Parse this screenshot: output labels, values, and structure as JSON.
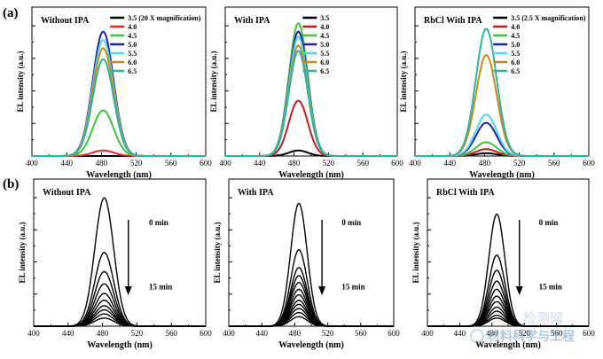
{
  "figure": {
    "panel_labels": [
      "(a)",
      "(b)"
    ],
    "watermark": {
      "line1": "检测网",
      "line2": "材料科学与工程"
    }
  },
  "chart_data": [
    {
      "type": "line",
      "row": "a",
      "title": "Without IPA",
      "xlabel": "Wavelength (nm)",
      "ylabel": "EL intensity (a.u.)",
      "xlim": [
        400,
        600
      ],
      "xticks": [
        400,
        440,
        480,
        520,
        560,
        600
      ],
      "ylim": [
        0,
        1.0
      ],
      "peak": 482,
      "sigma": 12,
      "legend_position": "top-right",
      "series": [
        {
          "name": "3.5 (20 X magnification)",
          "color": "#000000",
          "amplitude": 0.0
        },
        {
          "name": "4.0",
          "color": "#e8262a",
          "amplitude": 0.04
        },
        {
          "name": "4.5",
          "color": "#3cc63c",
          "amplitude": 0.33
        },
        {
          "name": "5.0",
          "color": "#1f1fa8",
          "amplitude": 0.9
        },
        {
          "name": "5.5",
          "color": "#52d6f2",
          "amplitude": 0.84
        },
        {
          "name": "6.0",
          "color": "#c98a1a",
          "amplitude": 0.78
        },
        {
          "name": "6.5",
          "color": "#2fb3a0",
          "amplitude": 0.7
        }
      ]
    },
    {
      "type": "line",
      "row": "a",
      "title": "With IPA",
      "xlabel": "Wavelength (nm)",
      "ylabel": "EL intensity (a.u.)",
      "xlim": [
        400,
        600
      ],
      "xticks": [
        400,
        440,
        480,
        520,
        560,
        600
      ],
      "ylim": [
        0,
        1.0
      ],
      "peak": 485,
      "sigma": 11,
      "legend_position": "top-right",
      "series": [
        {
          "name": "3.5",
          "color": "#000000",
          "amplitude": 0.04
        },
        {
          "name": "4.0",
          "color": "#c41c1c",
          "amplitude": 0.4
        },
        {
          "name": "4.5",
          "color": "#3cc63c",
          "amplitude": 0.96
        },
        {
          "name": "5.0",
          "color": "#1f1fa8",
          "amplitude": 0.9
        },
        {
          "name": "5.5",
          "color": "#52d6f2",
          "amplitude": 0.86
        },
        {
          "name": "6.0",
          "color": "#c98a1a",
          "amplitude": 0.8
        },
        {
          "name": "6.5",
          "color": "#2fb3a0",
          "amplitude": 0.76
        }
      ]
    },
    {
      "type": "line",
      "row": "a",
      "title": "RbCl With IPA",
      "xlabel": "Wavelength (nm)",
      "ylabel": "EL intensity (a.u.)",
      "xlim": [
        400,
        600
      ],
      "xticks": [
        400,
        440,
        480,
        520,
        560,
        600
      ],
      "ylim": [
        0,
        1.0
      ],
      "peak": 482,
      "sigma": 12,
      "legend_position": "top-right",
      "series": [
        {
          "name": "3.5 (2.5 X magnification)",
          "color": "#000000",
          "amplitude": 0.02
        },
        {
          "name": "4.0",
          "color": "#c41c1c",
          "amplitude": 0.05
        },
        {
          "name": "4.5",
          "color": "#3cc63c",
          "amplitude": 0.1
        },
        {
          "name": "5.0",
          "color": "#1f1fa8",
          "amplitude": 0.24
        },
        {
          "name": "5.5",
          "color": "#52d6f2",
          "amplitude": 0.3
        },
        {
          "name": "6.0",
          "color": "#c98a1a",
          "amplitude": 0.73
        },
        {
          "name": "6.5",
          "color": "#2fb3a0",
          "amplitude": 0.92
        }
      ]
    },
    {
      "type": "line",
      "row": "b",
      "title": "Without IPA",
      "xlabel": "Wavelength (nm)",
      "ylabel": "EL intensity (a.u.)",
      "xlim": [
        400,
        600
      ],
      "xticks": [
        400,
        440,
        480,
        520,
        560,
        600
      ],
      "ylim": [
        0,
        1.0
      ],
      "peak": 482,
      "sigma": 11,
      "color": "#000000",
      "amplitudes": [
        0.94,
        0.54,
        0.4,
        0.31,
        0.24,
        0.19,
        0.15,
        0.12,
        0.09,
        0.06
      ],
      "annotations": {
        "start": "0 min",
        "end": "15 min"
      }
    },
    {
      "type": "line",
      "row": "b",
      "title": "With IPA",
      "xlabel": "Wavelength (nm)",
      "ylabel": "EL intensity (a.u.)",
      "xlim": [
        400,
        600
      ],
      "xticks": [
        400,
        440,
        480,
        520,
        560,
        600
      ],
      "ylim": [
        0,
        1.0
      ],
      "peak": 485,
      "sigma": 10,
      "color": "#000000",
      "amplitudes": [
        0.9,
        0.56,
        0.43,
        0.37,
        0.32,
        0.27,
        0.23,
        0.19,
        0.16,
        0.13,
        0.1,
        0.07
      ],
      "annotations": {
        "start": "0 min",
        "end": "15 min"
      }
    },
    {
      "type": "line",
      "row": "b",
      "title": "RbCl With IPA",
      "xlabel": "Wavelength (nm)",
      "ylabel": "EL intensity (a.u.)",
      "xlim": [
        400,
        600
      ],
      "xticks": [
        400,
        440,
        480,
        520,
        560,
        600
      ],
      "ylim": [
        0,
        1.0
      ],
      "peak": 486,
      "sigma": 10,
      "color": "#000000",
      "amplitudes": [
        0.82,
        0.52,
        0.41,
        0.33,
        0.27,
        0.22,
        0.18,
        0.14,
        0.11,
        0.08,
        0.06
      ],
      "annotations": {
        "start": "0 min",
        "end": "15 min"
      }
    }
  ]
}
